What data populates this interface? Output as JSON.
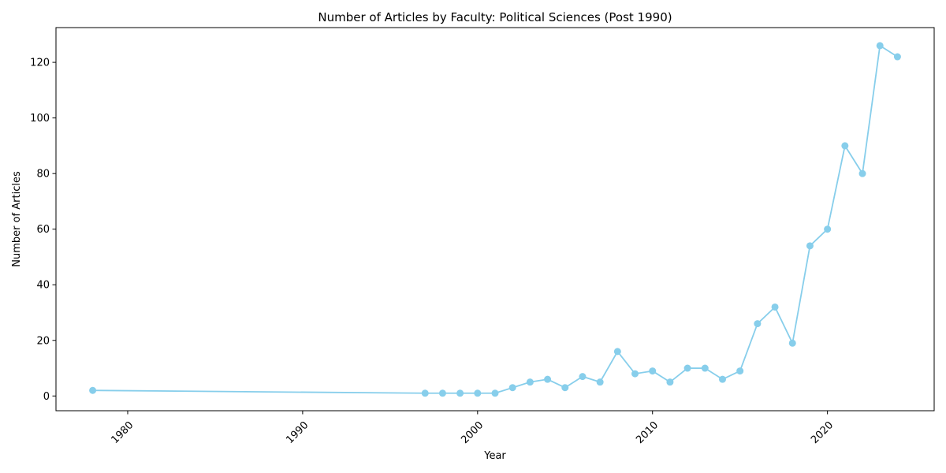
{
  "chart_data": {
    "type": "line",
    "title": "Number of Articles by Faculty: Political Sciences (Post 1990)",
    "xlabel": "Year",
    "ylabel": "Number of Articles",
    "xlim": [
      1975.9,
      2026.1
    ],
    "ylim": [
      -5.3,
      132.5
    ],
    "xticks": [
      1980,
      1990,
      2000,
      2010,
      2020
    ],
    "yticks": [
      0,
      20,
      40,
      60,
      80,
      100,
      120
    ],
    "grid": false,
    "legend": "none",
    "color": "#87ceeb",
    "series": [
      {
        "x": [
          1978,
          1997,
          1998,
          1999,
          2000,
          2001,
          2002,
          2003,
          2004,
          2005,
          2006,
          2007,
          2008,
          2009,
          2010,
          2011,
          2012,
          2013,
          2014,
          2015,
          2016,
          2017,
          2018,
          2019,
          2020,
          2021,
          2022,
          2023,
          2024
        ],
        "values": [
          2,
          1,
          1,
          1,
          1,
          1,
          3,
          5,
          6,
          3,
          7,
          5,
          16,
          8,
          9,
          5,
          10,
          10,
          6,
          9,
          26,
          32,
          19,
          54,
          60,
          90,
          80,
          126,
          122
        ]
      }
    ]
  }
}
